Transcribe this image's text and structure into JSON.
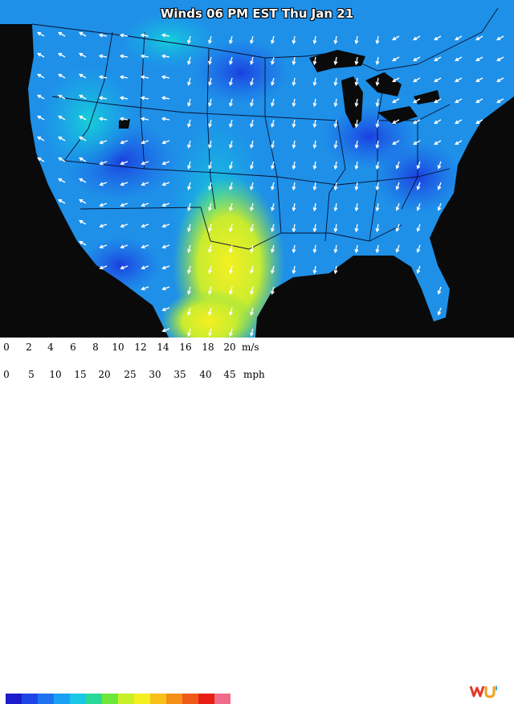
{
  "map": {
    "title": "Winds 06 PM EST Thu Jan 21",
    "legend": {
      "ms_ticks": [
        "0",
        "2",
        "4",
        "6",
        "8",
        "10",
        "12",
        "14",
        "16",
        "18",
        "20"
      ],
      "ms_unit": "m/s",
      "mph_ticks": [
        "0",
        "5",
        "10",
        "15",
        "20",
        "25",
        "30",
        "35",
        "40",
        "45"
      ],
      "mph_unit": "mph",
      "colors": [
        "#1c1ccc",
        "#1e45e6",
        "#1f72f0",
        "#1aa0f2",
        "#16c8e6",
        "#2ad89a",
        "#6ee63a",
        "#c8f028",
        "#f4f020",
        "#f8c018",
        "#f49018",
        "#f05a18",
        "#e81e14",
        "#f06a8a"
      ]
    },
    "logo": "wu-logo",
    "land_color": "#1e90e8",
    "water_color": "#0a0a0a"
  }
}
